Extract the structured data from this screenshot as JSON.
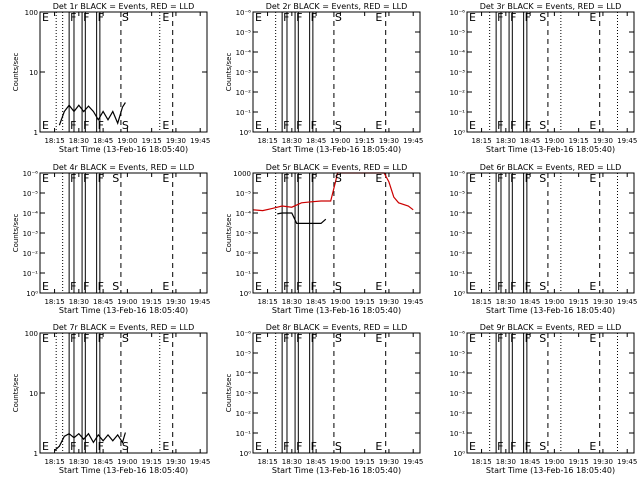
{
  "chart_data": [
    {
      "type": "line",
      "title": "Det 1r BLACK = Events, RED = LLD",
      "xlabel": "Start Time (13-Feb-16 18:05:40)",
      "ylabel": "Counts/sec",
      "yscale": "log",
      "ylim": [
        1,
        100
      ],
      "yticks": [
        "1",
        "10",
        "100"
      ],
      "xticks": [
        "18:15",
        "18:30",
        "18:45",
        "19:00",
        "19:15",
        "19:30",
        "19:45"
      ],
      "markers": {
        "dotted_at": [
          "18:16",
          "18:20",
          "19:20"
        ],
        "solid_at": [
          "18:24",
          "18:27",
          "18:32",
          "18:34",
          "18:41",
          "18:43"
        ],
        "dashed_at": [
          "18:56",
          "19:28"
        ],
        "letters": [
          {
            "text": "E",
            "at": "18:08"
          },
          {
            "text": "F",
            "at": "18:24"
          },
          {
            "text": "F",
            "at": "18:32"
          },
          {
            "text": "F",
            "at": "18:41"
          },
          {
            "text": "S",
            "at": "18:56"
          },
          {
            "text": "E",
            "at": "19:21"
          }
        ]
      },
      "series": [
        {
          "color": "#000000",
          "points": [
            [
              18.3,
              1.3
            ],
            [
              18.35,
              2.2
            ],
            [
              18.4,
              2.8
            ],
            [
              18.45,
              2.2
            ],
            [
              18.5,
              2.8
            ],
            [
              18.55,
              2.2
            ],
            [
              18.6,
              2.7
            ],
            [
              18.65,
              2.2
            ],
            [
              18.7,
              1.6
            ],
            [
              18.75,
              2.2
            ],
            [
              18.8,
              1.6
            ],
            [
              18.85,
              2.2
            ],
            [
              18.9,
              1.4
            ],
            [
              18.95,
              2.6
            ],
            [
              18.98,
              3.1
            ]
          ]
        }
      ]
    },
    {
      "type": "line",
      "title": "Det 2r BLACK = Events, RED = LLD",
      "xlabel": "Start Time (13-Feb-16 18:05:40)",
      "ylabel": "Counts/sec",
      "yscale": "log",
      "ylim": [
        1,
        1000000
      ],
      "yticks": [
        "10⁰",
        "10⁻¹",
        "10⁻²",
        "10⁻³",
        "10⁻⁴",
        "10⁻⁵",
        "10⁻⁶"
      ],
      "xticks": [
        "18:15",
        "18:30",
        "18:45",
        "19:00",
        "19:15",
        "19:30",
        "19:45"
      ],
      "markers": {
        "dotted_at": [
          "18:20"
        ],
        "solid_at": [
          "18:24",
          "18:27",
          "18:32",
          "18:34",
          "18:41",
          "18:43"
        ],
        "dashed_at": [
          "18:56",
          "19:28"
        ],
        "letters": [
          {
            "text": "E",
            "at": "18:08"
          },
          {
            "text": "F",
            "at": "18:24"
          },
          {
            "text": "F",
            "at": "18:32"
          },
          {
            "text": "F",
            "at": "18:41"
          },
          {
            "text": "S",
            "at": "18:56"
          },
          {
            "text": "E",
            "at": "19:21"
          }
        ]
      },
      "series": []
    },
    {
      "type": "line",
      "title": "Det 3r BLACK = Events, RED = LLD",
      "xlabel": "Start Time (13-Feb-16 18:05:40)",
      "ylabel": "",
      "yscale": "log",
      "ylim": [
        1,
        1000000
      ],
      "yticks": [
        "10⁰",
        "10⁻¹",
        "10⁻²",
        "10⁻³",
        "10⁻⁴",
        "10⁻⁵",
        "10⁻⁶"
      ],
      "xticks": [
        "18:15",
        "18:30",
        "18:45",
        "19:00",
        "19:15",
        "19:30",
        "19:45"
      ],
      "markers": {
        "dotted_at": [
          "18:20",
          "19:04",
          "19:39"
        ],
        "solid_at": [
          "18:24",
          "18:27",
          "18:32",
          "18:34",
          "18:41",
          "18:43"
        ],
        "dashed_at": [
          "18:56",
          "19:28"
        ],
        "letters": [
          {
            "text": "E",
            "at": "18:08"
          },
          {
            "text": "F",
            "at": "18:24"
          },
          {
            "text": "F",
            "at": "18:32"
          },
          {
            "text": "F",
            "at": "18:41"
          },
          {
            "text": "S",
            "at": "18:50"
          },
          {
            "text": "E",
            "at": "19:21"
          }
        ]
      },
      "series": []
    },
    {
      "type": "line",
      "title": "Det 4r BLACK = Events, RED = LLD",
      "xlabel": "Start Time (13-Feb-16 18:05:40)",
      "ylabel": "Counts/sec",
      "yscale": "log",
      "ylim": [
        1,
        1000000
      ],
      "yticks": [
        "10⁰",
        "10⁻¹",
        "10⁻²",
        "10⁻³",
        "10⁻⁴",
        "10⁻⁵",
        "10⁻⁶"
      ],
      "xticks": [
        "18:15",
        "18:30",
        "18:45",
        "19:00",
        "19:15",
        "19:30",
        "19:45"
      ],
      "markers": {
        "dotted_at": [
          "18:20"
        ],
        "solid_at": [
          "18:24",
          "18:27",
          "18:32",
          "18:34",
          "18:41",
          "18:43"
        ],
        "dashed_at": [
          "18:56",
          "19:28"
        ],
        "letters": [
          {
            "text": "E",
            "at": "18:08"
          },
          {
            "text": "F",
            "at": "18:24"
          },
          {
            "text": "F",
            "at": "18:32"
          },
          {
            "text": "F",
            "at": "18:41"
          },
          {
            "text": "S",
            "at": "18:50"
          },
          {
            "text": "E",
            "at": "19:21"
          }
        ]
      },
      "series": []
    },
    {
      "type": "line",
      "title": "Det 5r BLACK = Events, RED = LLD",
      "xlabel": "Start Time (13-Feb-16 18:05:40)",
      "ylabel": "Counts/sec",
      "yscale": "log",
      "ylim": [
        1,
        1000
      ],
      "yticks": [
        "10⁰",
        "10⁻¹",
        "10⁻²",
        "10⁻³",
        "10⁻⁴",
        "10⁻⁵",
        "1000"
      ],
      "xticks": [
        "18:15",
        "18:30",
        "18:45",
        "19:00",
        "19:15",
        "19:30",
        "19:45"
      ],
      "markers": {
        "dotted_at": [
          "18:20"
        ],
        "solid_at": [
          "18:24",
          "18:27",
          "18:32",
          "18:34",
          "18:41",
          "18:43"
        ],
        "dashed_at": [
          "18:56",
          "19:28"
        ],
        "letters": [
          {
            "text": "E",
            "at": "18:08"
          },
          {
            "text": "F",
            "at": "18:24"
          },
          {
            "text": "F",
            "at": "18:32"
          },
          {
            "text": "F",
            "at": "18:41"
          },
          {
            "text": "S",
            "at": "18:56"
          },
          {
            "text": "E",
            "at": "19:21"
          }
        ]
      },
      "series": [
        {
          "color": "#000000",
          "points": [
            [
              18.35,
              95
            ],
            [
              18.4,
              100
            ],
            [
              18.45,
              100
            ],
            [
              18.5,
              100
            ],
            [
              18.55,
              55
            ],
            [
              18.6,
              55
            ],
            [
              18.7,
              55
            ],
            [
              18.8,
              55
            ],
            [
              18.85,
              70
            ]
          ]
        },
        {
          "color": "#cc0000",
          "points": [
            [
              18.1,
              120
            ],
            [
              18.2,
              115
            ],
            [
              18.3,
              130
            ],
            [
              18.4,
              150
            ],
            [
              18.5,
              140
            ],
            [
              18.6,
              180
            ],
            [
              18.7,
              190
            ],
            [
              18.8,
              200
            ],
            [
              18.9,
              200
            ],
            [
              18.95,
              600
            ],
            [
              18.97,
              1000
            ],
            [
              19.45,
              1000
            ],
            [
              19.5,
              600
            ],
            [
              19.55,
              250
            ],
            [
              19.6,
              180
            ],
            [
              19.7,
              150
            ],
            [
              19.75,
              120
            ]
          ]
        }
      ]
    },
    {
      "type": "line",
      "title": "Det 6r BLACK = Events, RED = LLD",
      "xlabel": "Start Time (13-Feb-16 18:05:40)",
      "ylabel": "",
      "yscale": "log",
      "ylim": [
        1,
        1000000
      ],
      "yticks": [
        "10⁰",
        "10⁻¹",
        "10⁻²",
        "10⁻³",
        "10⁻⁴",
        "10⁻⁵",
        "10⁻⁶"
      ],
      "xticks": [
        "18:15",
        "18:30",
        "18:45",
        "19:00",
        "19:15",
        "19:30",
        "19:45"
      ],
      "markers": {
        "dotted_at": [
          "18:20",
          "19:04",
          "19:39"
        ],
        "solid_at": [
          "18:24",
          "18:27",
          "18:32",
          "18:34",
          "18:41",
          "18:43"
        ],
        "dashed_at": [
          "18:56",
          "19:28"
        ],
        "letters": [
          {
            "text": "E",
            "at": "18:08"
          },
          {
            "text": "F",
            "at": "18:24"
          },
          {
            "text": "F",
            "at": "18:32"
          },
          {
            "text": "F",
            "at": "18:41"
          },
          {
            "text": "S",
            "at": "18:50"
          },
          {
            "text": "E",
            "at": "19:21"
          }
        ]
      },
      "series": []
    },
    {
      "type": "line",
      "title": "Det 7r BLACK = Events, RED = LLD",
      "xlabel": "Start Time (13-Feb-16 18:05:40)",
      "ylabel": "Counts/sec",
      "yscale": "log",
      "ylim": [
        1,
        100
      ],
      "yticks": [
        "1",
        "10",
        "100"
      ],
      "xticks": [
        "18:15",
        "18:30",
        "18:45",
        "19:00",
        "19:15",
        "19:30",
        "19:45"
      ],
      "markers": {
        "dotted_at": [
          "18:16",
          "18:20",
          "19:20"
        ],
        "solid_at": [
          "18:24",
          "18:27",
          "18:32",
          "18:34",
          "18:41",
          "18:43"
        ],
        "dashed_at": [
          "18:56",
          "19:28"
        ],
        "letters": [
          {
            "text": "E",
            "at": "18:08"
          },
          {
            "text": "F",
            "at": "18:24"
          },
          {
            "text": "F",
            "at": "18:32"
          },
          {
            "text": "F",
            "at": "18:41"
          },
          {
            "text": "S",
            "at": "18:56"
          },
          {
            "text": "E",
            "at": "19:21"
          }
        ]
      },
      "series": [
        {
          "color": "#000000",
          "points": [
            [
              18.25,
              1.1
            ],
            [
              18.3,
              1.3
            ],
            [
              18.35,
              1.9
            ],
            [
              18.4,
              2.1
            ],
            [
              18.45,
              1.8
            ],
            [
              18.5,
              2.1
            ],
            [
              18.55,
              1.7
            ],
            [
              18.6,
              2.1
            ],
            [
              18.65,
              1.5
            ],
            [
              18.7,
              2.0
            ],
            [
              18.75,
              1.6
            ],
            [
              18.8,
              2.0
            ],
            [
              18.85,
              1.6
            ],
            [
              18.9,
              2.0
            ],
            [
              18.95,
              1.5
            ],
            [
              18.98,
              2.2
            ]
          ]
        }
      ]
    },
    {
      "type": "line",
      "title": "Det 8r BLACK = Events, RED = LLD",
      "xlabel": "Start Time (13-Feb-16 18:05:40)",
      "ylabel": "Counts/sec",
      "yscale": "log",
      "ylim": [
        1,
        1000000
      ],
      "yticks": [
        "10⁰",
        "10⁻¹",
        "10⁻²",
        "10⁻³",
        "10⁻⁴",
        "10⁻⁵",
        "10⁻⁶"
      ],
      "xticks": [
        "18:15",
        "18:30",
        "18:45",
        "19:00",
        "19:15",
        "19:30",
        "19:45"
      ],
      "markers": {
        "dotted_at": [
          "18:20"
        ],
        "solid_at": [
          "18:24",
          "18:27",
          "18:32",
          "18:34",
          "18:41",
          "18:43"
        ],
        "dashed_at": [
          "18:56",
          "19:28"
        ],
        "letters": [
          {
            "text": "E",
            "at": "18:08"
          },
          {
            "text": "F",
            "at": "18:24"
          },
          {
            "text": "F",
            "at": "18:32"
          },
          {
            "text": "F",
            "at": "18:41"
          },
          {
            "text": "S",
            "at": "18:56"
          },
          {
            "text": "E",
            "at": "19:21"
          }
        ]
      },
      "series": []
    },
    {
      "type": "line",
      "title": "Det 9r BLACK = Events, RED = LLD",
      "xlabel": "Start Time (13-Feb-16 18:05:40)",
      "ylabel": "",
      "yscale": "log",
      "ylim": [
        1,
        1000000
      ],
      "yticks": [
        "10⁰",
        "10⁻¹",
        "10⁻²",
        "10⁻³",
        "10⁻⁴",
        "10⁻⁵",
        "10⁻⁶"
      ],
      "xticks": [
        "18:15",
        "18:30",
        "18:45",
        "19:00",
        "19:15",
        "19:30",
        "19:45"
      ],
      "markers": {
        "dotted_at": [
          "18:20",
          "19:04",
          "19:39"
        ],
        "solid_at": [
          "18:24",
          "18:27",
          "18:32",
          "18:34",
          "18:41",
          "18:43"
        ],
        "dashed_at": [
          "18:56",
          "19:28"
        ],
        "letters": [
          {
            "text": "E",
            "at": "18:08"
          },
          {
            "text": "F",
            "at": "18:24"
          },
          {
            "text": "F",
            "at": "18:32"
          },
          {
            "text": "F",
            "at": "18:41"
          },
          {
            "text": "S",
            "at": "18:50"
          },
          {
            "text": "E",
            "at": "19:21"
          }
        ]
      },
      "series": []
    }
  ]
}
